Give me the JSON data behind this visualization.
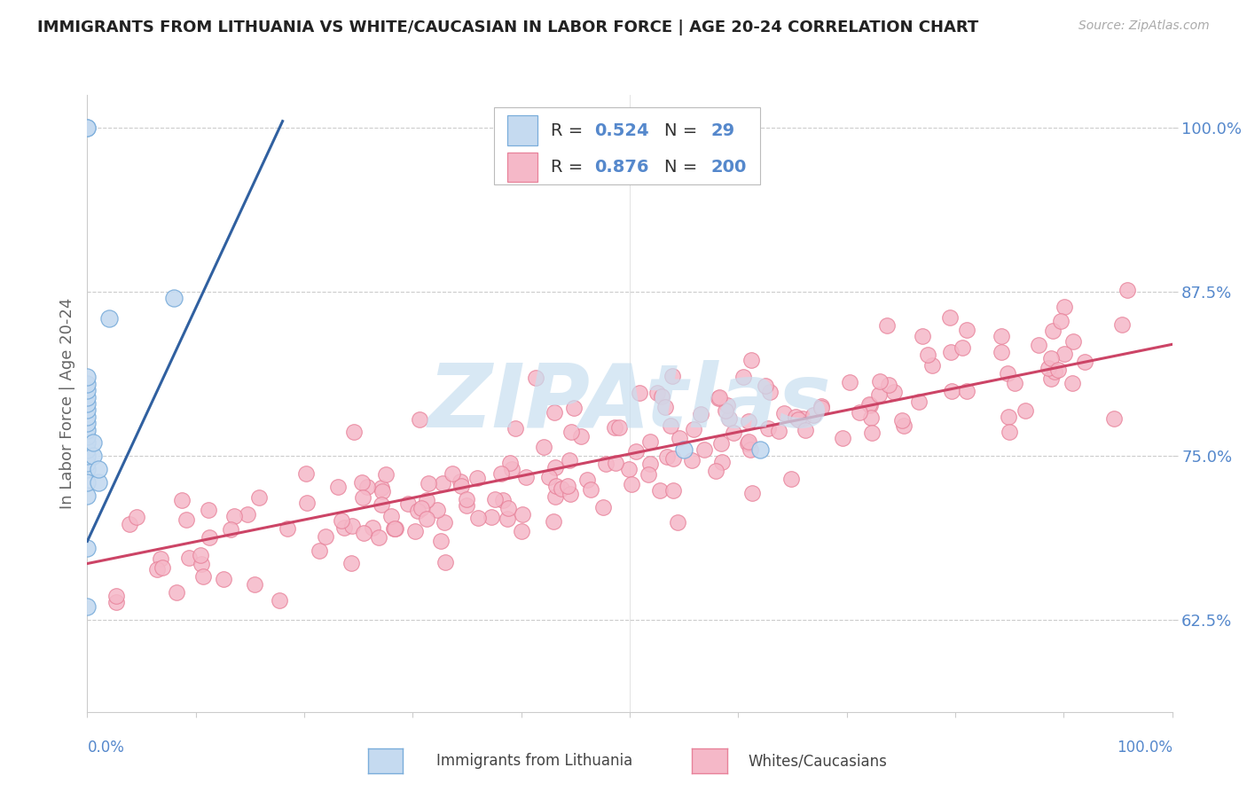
{
  "title": "IMMIGRANTS FROM LITHUANIA VS WHITE/CAUCASIAN IN LABOR FORCE | AGE 20-24 CORRELATION CHART",
  "source": "Source: ZipAtlas.com",
  "ylabel": "In Labor Force | Age 20-24",
  "yticks": [
    "62.5%",
    "75.0%",
    "87.5%",
    "100.0%"
  ],
  "ytick_vals": [
    0.625,
    0.75,
    0.875,
    1.0
  ],
  "xlim": [
    0.0,
    1.0
  ],
  "ylim": [
    0.555,
    1.025
  ],
  "blue_color": "#7aaddb",
  "blue_fill": "#c5daf0",
  "pink_color": "#e8829a",
  "pink_fill": "#f5b8c8",
  "line_blue": "#3060a0",
  "line_pink": "#cc4466",
  "title_color": "#222222",
  "source_color": "#aaaaaa",
  "axis_label_color": "#5588cc",
  "watermark_color": "#c8dff0",
  "blue_line_x": [
    0.0,
    0.18
  ],
  "blue_line_y": [
    0.685,
    1.005
  ],
  "pink_line_x": [
    0.0,
    1.0
  ],
  "pink_line_y": [
    0.668,
    0.835
  ],
  "blue_scatter_x": [
    0.0,
    0.0,
    0.0,
    0.0,
    0.0,
    0.0,
    0.0,
    0.0,
    0.0,
    0.0,
    0.0,
    0.0,
    0.0,
    0.0,
    0.0,
    0.0,
    0.0,
    0.0,
    0.0,
    0.0,
    0.0,
    0.005,
    0.005,
    0.01,
    0.01,
    0.02,
    0.08,
    0.55,
    0.62
  ],
  "blue_scatter_y": [
    0.74,
    0.745,
    0.75,
    0.755,
    0.76,
    0.765,
    0.77,
    0.775,
    0.78,
    0.785,
    0.79,
    0.795,
    0.8,
    0.805,
    0.81,
    0.72,
    0.73,
    0.68,
    0.635,
    1.0,
    1.0,
    0.75,
    0.76,
    0.73,
    0.74,
    0.855,
    0.87,
    0.755,
    0.755
  ]
}
